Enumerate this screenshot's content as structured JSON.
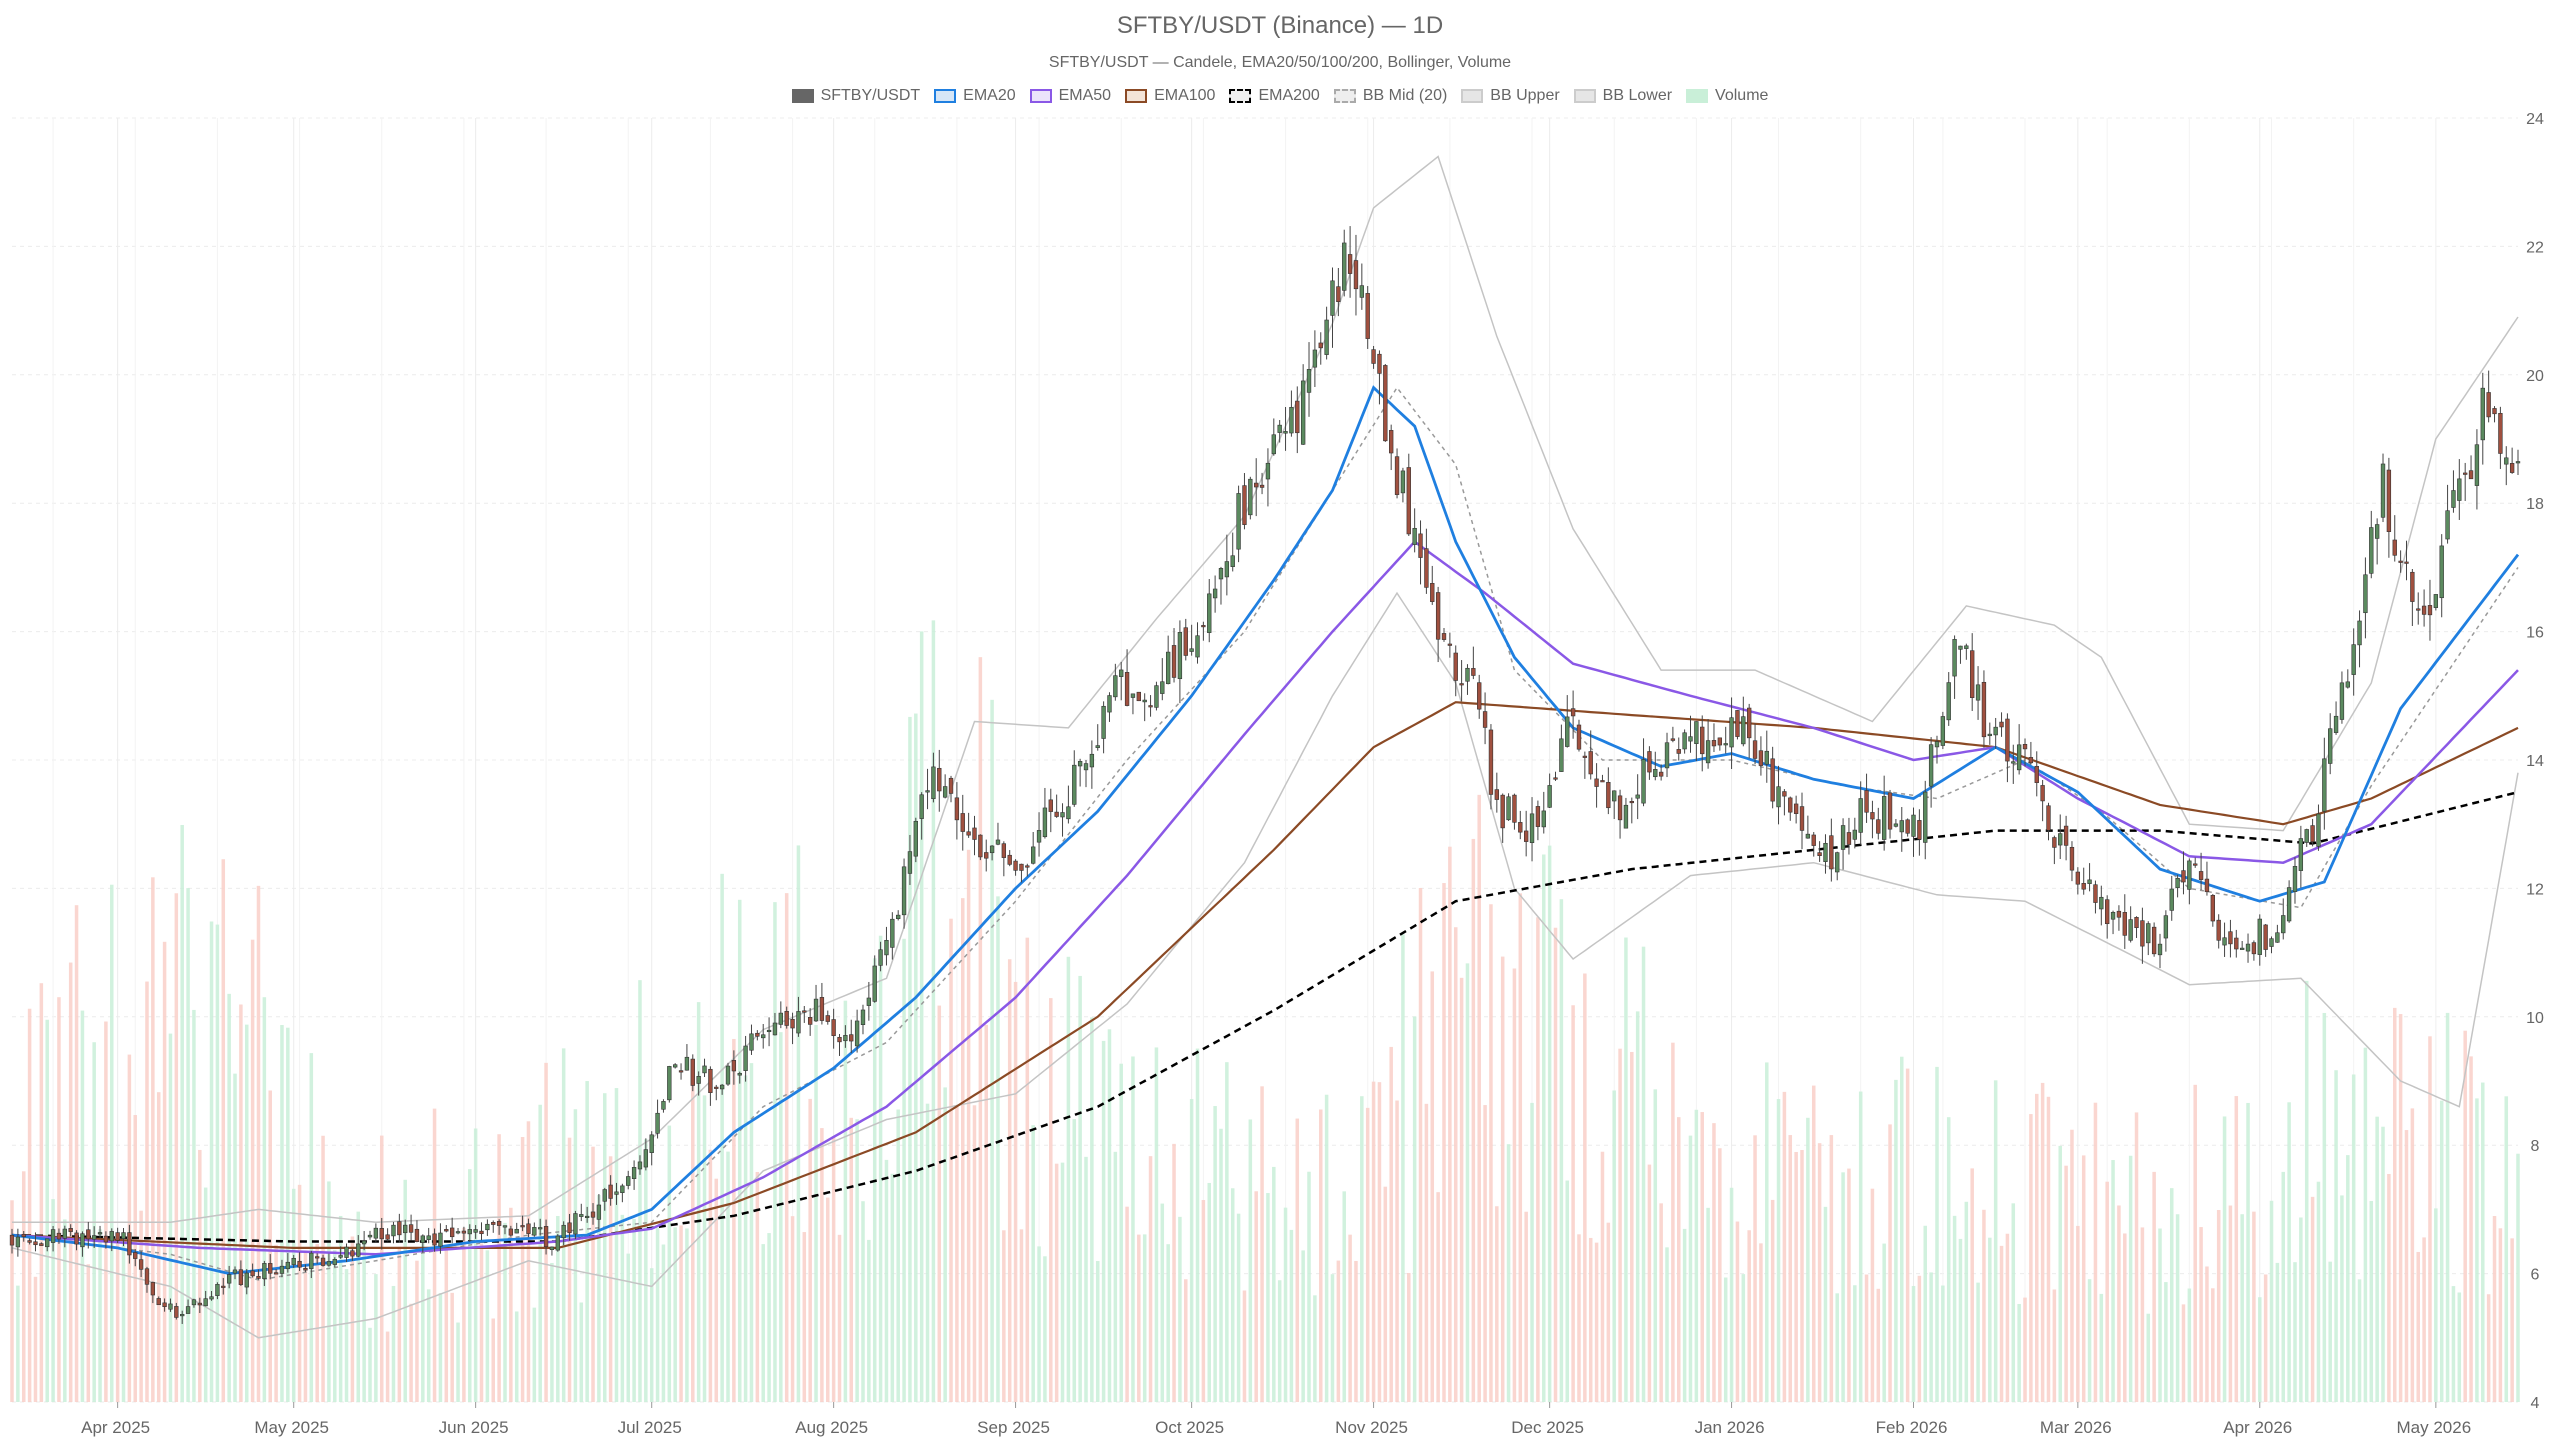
{
  "title": "SFTBY/USDT (Binance) — 1D",
  "subtitle": "SFTBY/USDT — Candele, EMA20/50/100/200, Bollinger, Volume",
  "legend": [
    {
      "label": "SFTBY/USDT",
      "fill": "#666666",
      "border": "#666666",
      "style": "solid"
    },
    {
      "label": "EMA20",
      "fill": "#d6e6f7",
      "border": "#1f7fe0",
      "style": "solid"
    },
    {
      "label": "EMA50",
      "fill": "#ece3fb",
      "border": "#8a58e6",
      "style": "solid"
    },
    {
      "label": "EMA100",
      "fill": "#f3e4d8",
      "border": "#8b4a25",
      "style": "solid"
    },
    {
      "label": "EMA200",
      "fill": "#eeeeee",
      "border": "#000000",
      "style": "dashed"
    },
    {
      "label": "BB Mid (20)",
      "fill": "#eeeeee",
      "border": "#aaaaaa",
      "style": "dashed"
    },
    {
      "label": "BB Upper",
      "fill": "#e6e6e6",
      "border": "#cccccc",
      "style": "solid"
    },
    {
      "label": "BB Lower",
      "fill": "#e6e6e6",
      "border": "#cccccc",
      "style": "solid"
    },
    {
      "label": "Volume",
      "fill": "#c9efd8",
      "border": "#c9efd8",
      "style": "solid"
    }
  ],
  "colors": {
    "up": "#5b8a5f",
    "down": "#a0503f",
    "ema20": "#1f7fe0",
    "ema50": "#8a58e6",
    "ema100": "#8b4a25",
    "ema200": "#000000",
    "bb_mid": "#999999",
    "bb_band": "#c4c4c4",
    "vol_up": "#c9efd8",
    "vol_down": "#f9cfc8",
    "grid": "#ececec",
    "tick": "#666666"
  },
  "chart_data": {
    "type": "candlestick",
    "x_start": "2025-03-14",
    "x_end": "2026-05-15",
    "ylim": [
      4,
      24
    ],
    "y_ticks": [
      4,
      6,
      8,
      10,
      12,
      14,
      16,
      18,
      20,
      22,
      24
    ],
    "x_ticks": [
      {
        "date": "2025-04-01",
        "label": "Apr 2025"
      },
      {
        "date": "2025-05-01",
        "label": "May 2025"
      },
      {
        "date": "2025-06-01",
        "label": "Jun 2025"
      },
      {
        "date": "2025-07-01",
        "label": "Jul 2025"
      },
      {
        "date": "2025-08-01",
        "label": "Aug 2025"
      },
      {
        "date": "2025-09-01",
        "label": "Sep 2025"
      },
      {
        "date": "2025-10-01",
        "label": "Oct 2025"
      },
      {
        "date": "2025-11-01",
        "label": "Nov 2025"
      },
      {
        "date": "2025-12-01",
        "label": "Dec 2025"
      },
      {
        "date": "2026-01-01",
        "label": "Jan 2026"
      },
      {
        "date": "2026-02-01",
        "label": "Feb 2026"
      },
      {
        "date": "2026-03-01",
        "label": "Mar 2026"
      },
      {
        "date": "2026-04-01",
        "label": "Apr 2026"
      },
      {
        "date": "2026-05-01",
        "label": "May 2026"
      }
    ],
    "close_anchors": [
      [
        "2025-03-14",
        6.6
      ],
      [
        "2025-03-25",
        6.6
      ],
      [
        "2025-04-02",
        6.5
      ],
      [
        "2025-04-07",
        5.6
      ],
      [
        "2025-04-12",
        5.4
      ],
      [
        "2025-04-20",
        5.9
      ],
      [
        "2025-05-01",
        6.1
      ],
      [
        "2025-05-08",
        6.3
      ],
      [
        "2025-05-18",
        6.7
      ],
      [
        "2025-05-28",
        6.5
      ],
      [
        "2025-06-06",
        6.8
      ],
      [
        "2025-06-14",
        6.5
      ],
      [
        "2025-06-20",
        6.9
      ],
      [
        "2025-06-28",
        7.6
      ],
      [
        "2025-07-05",
        9.3
      ],
      [
        "2025-07-12",
        8.9
      ],
      [
        "2025-07-20",
        9.7
      ],
      [
        "2025-07-27",
        10.2
      ],
      [
        "2025-08-04",
        9.6
      ],
      [
        "2025-08-12",
        11.8
      ],
      [
        "2025-08-18",
        14.0
      ],
      [
        "2025-08-25",
        12.8
      ],
      [
        "2025-09-02",
        12.3
      ],
      [
        "2025-09-10",
        13.6
      ],
      [
        "2025-09-18",
        15.1
      ],
      [
        "2025-09-24",
        15.0
      ],
      [
        "2025-10-02",
        16.2
      ],
      [
        "2025-10-08",
        17.6
      ],
      [
        "2025-10-15",
        18.8
      ],
      [
        "2025-10-21",
        19.8
      ],
      [
        "2025-10-27",
        21.8
      ],
      [
        "2025-11-01",
        20.3
      ],
      [
        "2025-11-04",
        18.4
      ],
      [
        "2025-11-08",
        17.8
      ],
      [
        "2025-11-12",
        16.0
      ],
      [
        "2025-11-18",
        15.2
      ],
      [
        "2025-11-22",
        13.2
      ],
      [
        "2025-11-28",
        13.0
      ],
      [
        "2025-12-05",
        14.6
      ],
      [
        "2025-12-12",
        13.3
      ],
      [
        "2025-12-18",
        13.8
      ],
      [
        "2025-12-25",
        14.3
      ],
      [
        "2026-01-03",
        14.6
      ],
      [
        "2026-01-10",
        13.2
      ],
      [
        "2026-01-16",
        12.4
      ],
      [
        "2026-01-24",
        13.2
      ],
      [
        "2026-02-02",
        13.0
      ],
      [
        "2026-02-08",
        16.0
      ],
      [
        "2026-02-14",
        14.3
      ],
      [
        "2026-02-20",
        13.9
      ],
      [
        "2026-02-28",
        12.2
      ],
      [
        "2026-03-07",
        11.5
      ],
      [
        "2026-03-14",
        11.2
      ],
      [
        "2026-03-20",
        12.4
      ],
      [
        "2026-03-26",
        11.2
      ],
      [
        "2026-04-03",
        11.3
      ],
      [
        "2026-04-10",
        13.0
      ],
      [
        "2026-04-16",
        15.6
      ],
      [
        "2026-04-22",
        18.4
      ],
      [
        "2026-04-28",
        16.0
      ],
      [
        "2026-05-05",
        18.2
      ],
      [
        "2026-05-10",
        19.6
      ],
      [
        "2026-05-15",
        18.6
      ]
    ],
    "ema20_anchors": [
      [
        "2025-03-14",
        6.6
      ],
      [
        "2025-04-01",
        6.4
      ],
      [
        "2025-04-20",
        6.0
      ],
      [
        "2025-05-10",
        6.2
      ],
      [
        "2025-06-01",
        6.5
      ],
      [
        "2025-06-20",
        6.6
      ],
      [
        "2025-07-01",
        7.0
      ],
      [
        "2025-07-15",
        8.2
      ],
      [
        "2025-08-01",
        9.2
      ],
      [
        "2025-08-15",
        10.3
      ],
      [
        "2025-09-01",
        12.0
      ],
      [
        "2025-09-15",
        13.2
      ],
      [
        "2025-10-01",
        15.0
      ],
      [
        "2025-10-15",
        16.8
      ],
      [
        "2025-10-25",
        18.2
      ],
      [
        "2025-11-01",
        19.8
      ],
      [
        "2025-11-08",
        19.2
      ],
      [
        "2025-11-15",
        17.4
      ],
      [
        "2025-11-25",
        15.6
      ],
      [
        "2025-12-05",
        14.5
      ],
      [
        "2025-12-20",
        13.9
      ],
      [
        "2026-01-01",
        14.1
      ],
      [
        "2026-01-15",
        13.7
      ],
      [
        "2026-02-01",
        13.4
      ],
      [
        "2026-02-15",
        14.2
      ],
      [
        "2026-03-01",
        13.5
      ],
      [
        "2026-03-15",
        12.3
      ],
      [
        "2026-04-01",
        11.8
      ],
      [
        "2026-04-12",
        12.1
      ],
      [
        "2026-04-25",
        14.8
      ],
      [
        "2026-05-15",
        17.2
      ]
    ],
    "ema50_anchors": [
      [
        "2025-03-14",
        6.6
      ],
      [
        "2025-04-15",
        6.4
      ],
      [
        "2025-05-15",
        6.3
      ],
      [
        "2025-06-15",
        6.5
      ],
      [
        "2025-07-01",
        6.7
      ],
      [
        "2025-07-20",
        7.5
      ],
      [
        "2025-08-10",
        8.6
      ],
      [
        "2025-09-01",
        10.3
      ],
      [
        "2025-09-20",
        12.2
      ],
      [
        "2025-10-10",
        14.4
      ],
      [
        "2025-10-25",
        16.0
      ],
      [
        "2025-11-08",
        17.4
      ],
      [
        "2025-11-20",
        16.6
      ],
      [
        "2025-12-05",
        15.5
      ],
      [
        "2025-12-25",
        15.0
      ],
      [
        "2026-01-15",
        14.5
      ],
      [
        "2026-02-01",
        14.0
      ],
      [
        "2026-02-15",
        14.2
      ],
      [
        "2026-03-01",
        13.4
      ],
      [
        "2026-03-20",
        12.5
      ],
      [
        "2026-04-05",
        12.4
      ],
      [
        "2026-04-20",
        13.0
      ],
      [
        "2026-05-15",
        15.4
      ]
    ],
    "ema100_anchors": [
      [
        "2025-03-14",
        6.6
      ],
      [
        "2025-05-01",
        6.4
      ],
      [
        "2025-06-15",
        6.4
      ],
      [
        "2025-07-15",
        7.1
      ],
      [
        "2025-08-15",
        8.2
      ],
      [
        "2025-09-15",
        10.0
      ],
      [
        "2025-10-15",
        12.6
      ],
      [
        "2025-11-01",
        14.2
      ],
      [
        "2025-11-15",
        14.9
      ],
      [
        "2025-12-15",
        14.7
      ],
      [
        "2026-01-15",
        14.5
      ],
      [
        "2026-02-15",
        14.2
      ],
      [
        "2026-03-15",
        13.3
      ],
      [
        "2026-04-05",
        13.0
      ],
      [
        "2026-04-20",
        13.4
      ],
      [
        "2026-05-15",
        14.5
      ]
    ],
    "ema200_anchors": [
      [
        "2025-03-14",
        6.6
      ],
      [
        "2025-05-01",
        6.5
      ],
      [
        "2025-06-15",
        6.5
      ],
      [
        "2025-07-15",
        6.9
      ],
      [
        "2025-08-15",
        7.6
      ],
      [
        "2025-09-15",
        8.6
      ],
      [
        "2025-10-15",
        10.1
      ],
      [
        "2025-11-15",
        11.8
      ],
      [
        "2025-12-15",
        12.3
      ],
      [
        "2026-01-15",
        12.6
      ],
      [
        "2026-02-15",
        12.9
      ],
      [
        "2026-03-15",
        12.9
      ],
      [
        "2026-04-10",
        12.7
      ],
      [
        "2026-05-15",
        13.5
      ]
    ],
    "bb_mid_anchors": [
      [
        "2025-03-14",
        6.6
      ],
      [
        "2025-04-10",
        6.3
      ],
      [
        "2025-04-25",
        5.9
      ],
      [
        "2025-05-15",
        6.2
      ],
      [
        "2025-06-10",
        6.6
      ],
      [
        "2025-07-01",
        6.8
      ],
      [
        "2025-07-20",
        8.6
      ],
      [
        "2025-08-10",
        9.6
      ],
      [
        "2025-09-01",
        11.8
      ],
      [
        "2025-09-20",
        14.0
      ],
      [
        "2025-10-10",
        16.0
      ],
      [
        "2025-10-25",
        18.2
      ],
      [
        "2025-11-05",
        19.8
      ],
      [
        "2025-11-15",
        18.6
      ],
      [
        "2025-11-25",
        15.4
      ],
      [
        "2025-12-10",
        14.0
      ],
      [
        "2026-01-01",
        14.0
      ],
      [
        "2026-01-20",
        13.6
      ],
      [
        "2026-02-05",
        13.4
      ],
      [
        "2026-02-20",
        14.0
      ],
      [
        "2026-03-05",
        13.2
      ],
      [
        "2026-03-20",
        12.0
      ],
      [
        "2026-04-08",
        11.7
      ],
      [
        "2026-04-20",
        13.6
      ],
      [
        "2026-05-15",
        17.0
      ]
    ],
    "bb_upper_anchors": [
      [
        "2025-03-14",
        6.8
      ],
      [
        "2025-04-10",
        6.8
      ],
      [
        "2025-04-25",
        7.0
      ],
      [
        "2025-05-15",
        6.8
      ],
      [
        "2025-06-10",
        6.9
      ],
      [
        "2025-07-01",
        8.1
      ],
      [
        "2025-07-20",
        9.8
      ],
      [
        "2025-08-10",
        10.6
      ],
      [
        "2025-08-25",
        14.6
      ],
      [
        "2025-09-10",
        14.5
      ],
      [
        "2025-09-25",
        16.2
      ],
      [
        "2025-10-10",
        17.8
      ],
      [
        "2025-10-25",
        20.8
      ],
      [
        "2025-11-01",
        22.6
      ],
      [
        "2025-11-12",
        23.4
      ],
      [
        "2025-11-22",
        20.6
      ],
      [
        "2025-12-05",
        17.6
      ],
      [
        "2025-12-20",
        15.4
      ],
      [
        "2026-01-05",
        15.4
      ],
      [
        "2026-01-25",
        14.6
      ],
      [
        "2026-02-10",
        16.4
      ],
      [
        "2026-02-25",
        16.1
      ],
      [
        "2026-03-05",
        15.6
      ],
      [
        "2026-03-20",
        13.0
      ],
      [
        "2026-04-05",
        12.9
      ],
      [
        "2026-04-20",
        15.2
      ],
      [
        "2026-05-01",
        19.0
      ],
      [
        "2026-05-15",
        20.9
      ]
    ],
    "bb_lower_anchors": [
      [
        "2025-03-14",
        6.4
      ],
      [
        "2025-04-10",
        5.8
      ],
      [
        "2025-04-25",
        5.0
      ],
      [
        "2025-05-15",
        5.3
      ],
      [
        "2025-06-10",
        6.2
      ],
      [
        "2025-07-01",
        5.8
      ],
      [
        "2025-07-20",
        7.6
      ],
      [
        "2025-08-10",
        8.4
      ],
      [
        "2025-09-01",
        8.8
      ],
      [
        "2025-09-20",
        10.2
      ],
      [
        "2025-10-10",
        12.4
      ],
      [
        "2025-10-25",
        15.0
      ],
      [
        "2025-11-05",
        16.6
      ],
      [
        "2025-11-15",
        15.2
      ],
      [
        "2025-11-25",
        12.0
      ],
      [
        "2025-12-05",
        10.9
      ],
      [
        "2025-12-25",
        12.2
      ],
      [
        "2026-01-15",
        12.4
      ],
      [
        "2026-02-05",
        11.9
      ],
      [
        "2026-02-20",
        11.8
      ],
      [
        "2026-03-05",
        11.2
      ],
      [
        "2026-03-20",
        10.5
      ],
      [
        "2026-04-08",
        10.6
      ],
      [
        "2026-04-25",
        9.0
      ],
      [
        "2026-05-05",
        8.6
      ],
      [
        "2026-05-15",
        13.8
      ]
    ],
    "volume_anchors": [
      [
        "2025-03-14",
        0.35
      ],
      [
        "2025-04-10",
        0.45
      ],
      [
        "2025-04-20",
        0.6
      ],
      [
        "2025-05-10",
        0.2
      ],
      [
        "2025-06-01",
        0.25
      ],
      [
        "2025-06-25",
        0.3
      ],
      [
        "2025-07-05",
        0.4
      ],
      [
        "2025-07-25",
        0.45
      ],
      [
        "2025-08-10",
        0.5
      ],
      [
        "2025-08-20",
        0.7
      ],
      [
        "2025-09-10",
        0.35
      ],
      [
        "2025-10-01",
        0.3
      ],
      [
        "2025-10-25",
        0.25
      ],
      [
        "2025-11-15",
        0.5
      ],
      [
        "2025-12-05",
        0.45
      ],
      [
        "2025-12-25",
        0.3
      ],
      [
        "2026-01-20",
        0.25
      ],
      [
        "2026-02-10",
        0.3
      ],
      [
        "2026-03-10",
        0.25
      ],
      [
        "2026-04-15",
        0.35
      ],
      [
        "2026-05-15",
        0.3
      ]
    ],
    "volume_scale_max": 1.0
  }
}
